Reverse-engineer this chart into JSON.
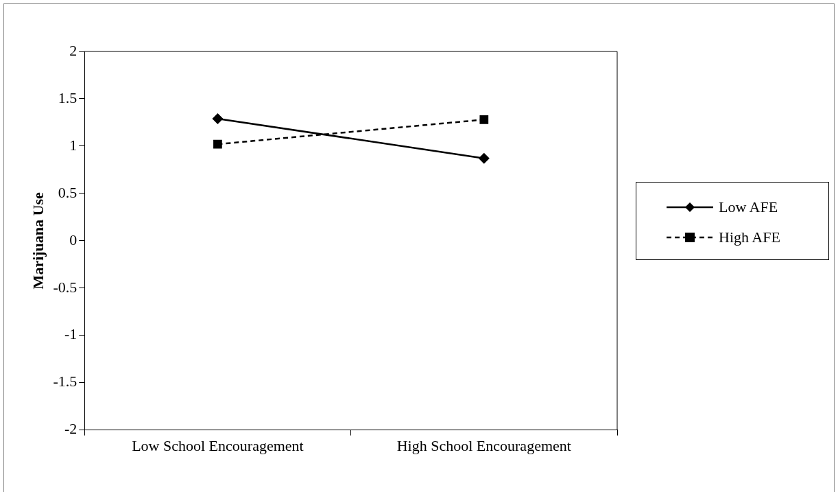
{
  "chart_data": {
    "type": "line",
    "ylabel": "Marijuana Use",
    "categories": [
      "Low School Encouragement",
      "High School Encouragement"
    ],
    "series": [
      {
        "name": "Low AFE",
        "color": "#000000",
        "values": [
          1.29,
          0.87
        ],
        "marker": "diamond",
        "line_style": "solid"
      },
      {
        "name": "High AFE",
        "color": "#000000",
        "values": [
          1.02,
          1.28
        ],
        "marker": "square",
        "line_style": "dashed"
      }
    ],
    "ylim": [
      -2,
      2
    ],
    "yticks": [
      -2,
      -1.5,
      -1,
      -0.5,
      0,
      0.5,
      1,
      1.5,
      2
    ],
    "grid": false,
    "legend": "right"
  }
}
